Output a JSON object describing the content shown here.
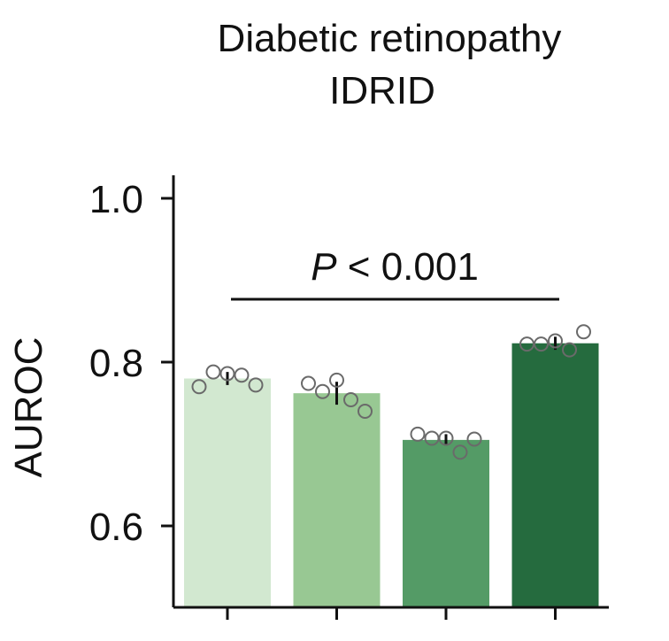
{
  "chart_data": {
    "type": "bar",
    "title": [
      "Diabetic retinopathy",
      "IDRID"
    ],
    "xlabel": "",
    "ylabel": "AUROC",
    "ylim": [
      0.52,
      1.03
    ],
    "yticks": [
      "0.6",
      "0.8",
      "1.0"
    ],
    "yticks_values": [
      0.6,
      0.8,
      1.0
    ],
    "categories": [
      "",
      "",
      "",
      ""
    ],
    "values": [
      0.78,
      0.762,
      0.705,
      0.823
    ],
    "errors": [
      0.008,
      0.014,
      0.007,
      0.008
    ],
    "points": [
      [
        0.77,
        0.788,
        0.786,
        0.784,
        0.772
      ],
      [
        0.774,
        0.764,
        0.778,
        0.754,
        0.74
      ],
      [
        0.712,
        0.707,
        0.707,
        0.69,
        0.706
      ],
      [
        0.822,
        0.822,
        0.826,
        0.815,
        0.837
      ]
    ],
    "colors": [
      "#d2e8d0",
      "#98c893",
      "#549b66",
      "#256b3e"
    ],
    "annotation": {
      "prefix": "P",
      "text": " < 0.001"
    },
    "grid": false
  }
}
